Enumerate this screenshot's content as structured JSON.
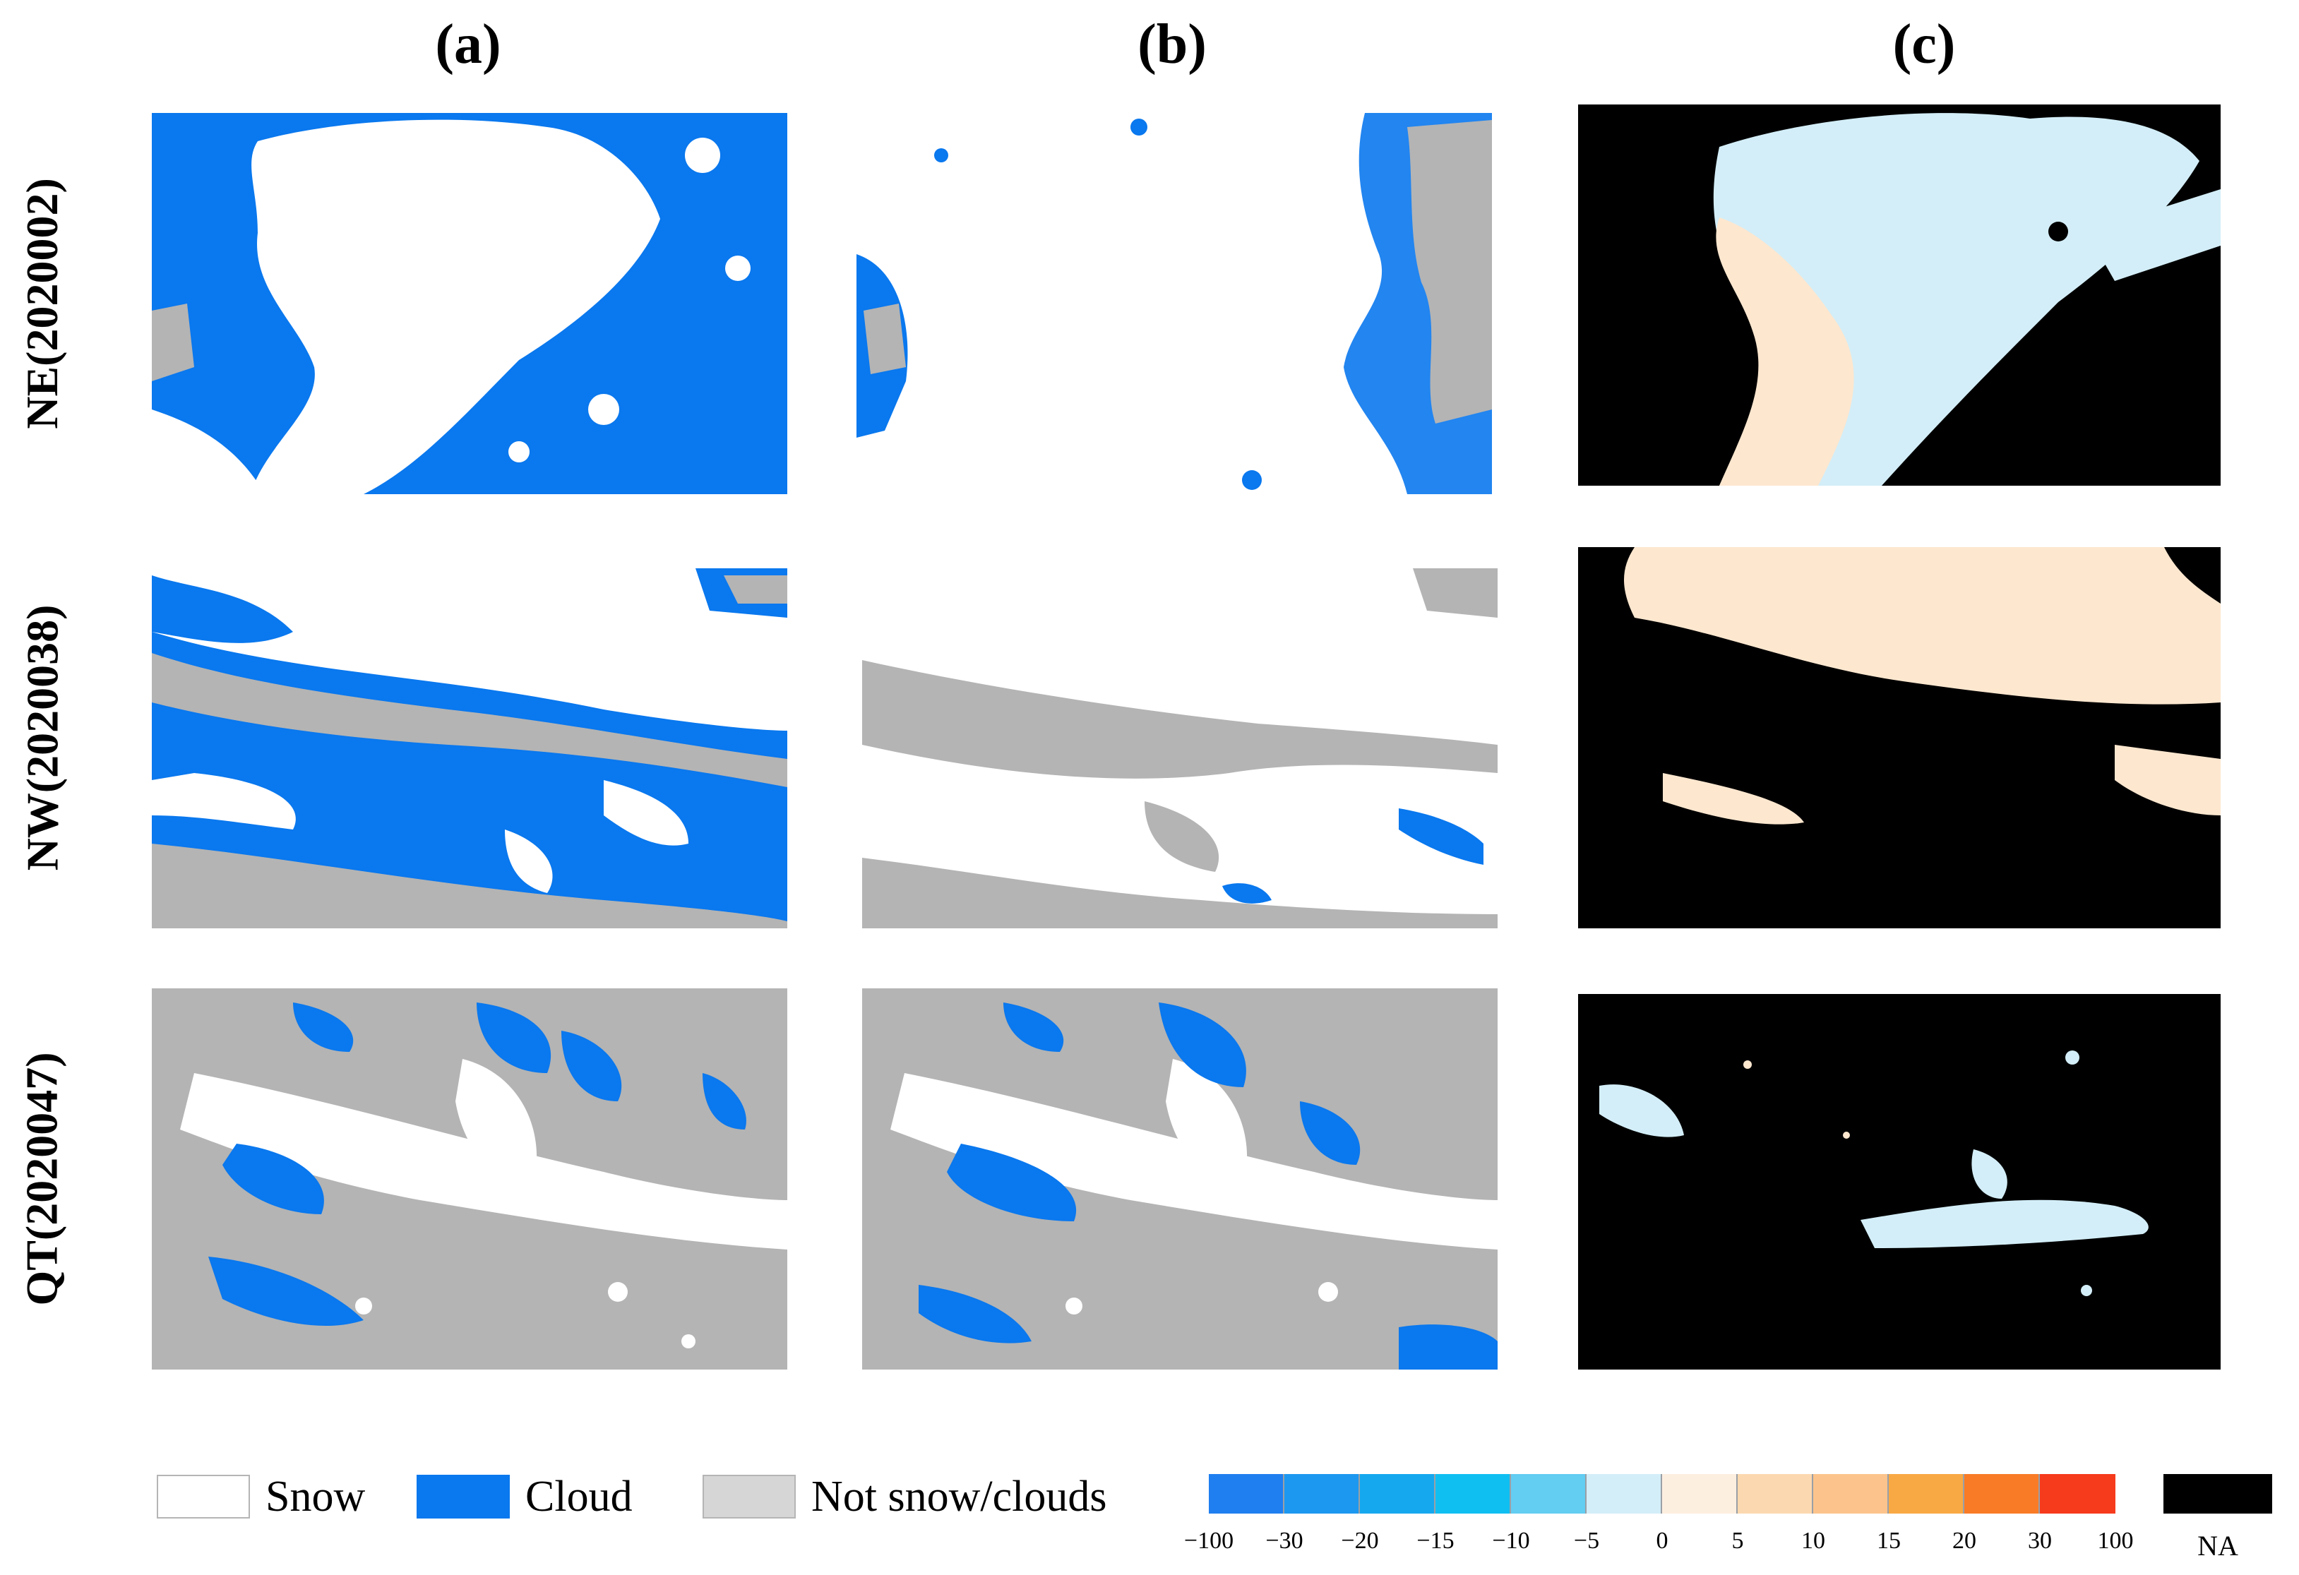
{
  "column_headers": [
    "(a)",
    "(b)",
    "(c)"
  ],
  "row_labels": [
    "NE(2020002)",
    "NW(2020038)",
    "QT(2020047)"
  ],
  "legend_categories": [
    {
      "label": "Snow",
      "color": "#ffffff"
    },
    {
      "label": "Cloud",
      "color": "#0a78ee"
    },
    {
      "label": "Not snow/clouds",
      "color": "#d6d6d6"
    }
  ],
  "color_scale": {
    "colors": [
      "#1f7ff0",
      "#1c98f0",
      "#16a8ef",
      "#10bff2",
      "#63cdf2",
      "#d3eef8",
      "#fdefe0",
      "#fcd8b0",
      "#fcc48c",
      "#f9a944",
      "#f97b26",
      "#f63a1c"
    ],
    "tick_labels": [
      "−100",
      "−30",
      "−20",
      "−15",
      "−10",
      "−5",
      "0",
      "5",
      "10",
      "15",
      "20",
      "30",
      "100"
    ],
    "na_label": "NA",
    "na_color": "#000000"
  },
  "panel_colors": {
    "snow": "#ffffff",
    "cloud": "#0a78ee",
    "ground": "#b4b4b4",
    "diff_none": "#000000",
    "diff_cool": "#d3eef8",
    "diff_warm": "#fde7cf"
  }
}
